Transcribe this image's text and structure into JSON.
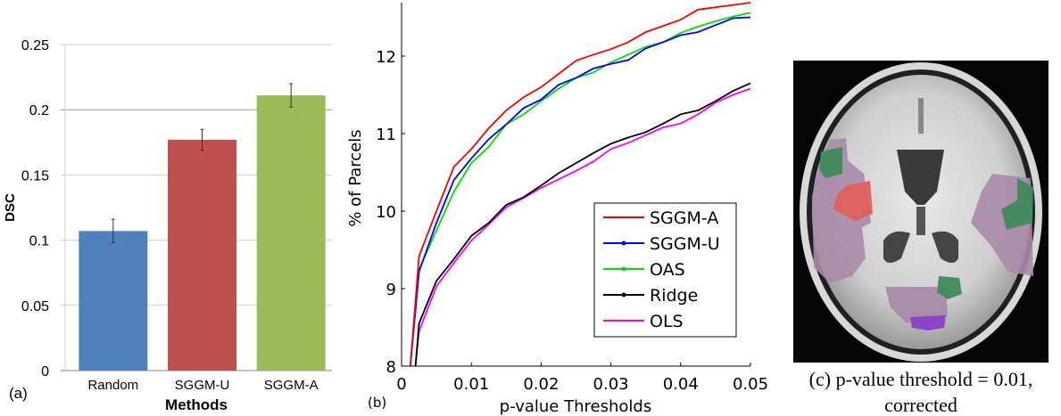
{
  "chart_data": [
    {
      "type": "bar",
      "panel_label": "(a)",
      "xlabel": "Methods",
      "ylabel": "DSC",
      "ylim": [
        0,
        0.25
      ],
      "yticks": [
        "0",
        "0.05",
        "0.1",
        "0.15",
        "0.2",
        "0.25"
      ],
      "grid": true,
      "categories": [
        "Random",
        "SGGM-U",
        "SGGM-A"
      ],
      "values": [
        0.107,
        0.177,
        0.211
      ],
      "errors": [
        0.009,
        0.008,
        0.009
      ],
      "colors": [
        "#4f81bd",
        "#c0504d",
        "#9bbb59"
      ]
    },
    {
      "type": "line",
      "panel_label": "(b)",
      "xlabel": "p-value Thresholds",
      "ylabel": "% of Parcels",
      "xlim": [
        0,
        0.05
      ],
      "ylim": [
        8,
        12.7
      ],
      "xticks": [
        "0",
        "0.01",
        "0.02",
        "0.03",
        "0.04",
        "0.05"
      ],
      "yticks": [
        "8",
        "9",
        "10",
        "11",
        "12"
      ],
      "grid": false,
      "legend_position": "bottom-right",
      "x": [
        0.00125,
        0.0025,
        0.005,
        0.0075,
        0.01,
        0.0125,
        0.015,
        0.0175,
        0.02,
        0.0225,
        0.025,
        0.0275,
        0.03,
        0.0325,
        0.035,
        0.0375,
        0.04,
        0.0425,
        0.045,
        0.0475,
        0.05
      ],
      "series": [
        {
          "name": "SGGM-A",
          "color": "#ff0000",
          "values": [
            8,
            9.42,
            10.0,
            10.57,
            10.8,
            11.07,
            11.3,
            11.47,
            11.6,
            11.77,
            11.94,
            12.02,
            12.09,
            12.18,
            12.31,
            12.39,
            12.47,
            12.6,
            12.63,
            12.66,
            12.72
          ]
        },
        {
          "name": "SGGM-U",
          "color": "#0000ff",
          "values": [
            8,
            9.22,
            9.85,
            10.4,
            10.68,
            10.93,
            11.12,
            11.33,
            11.44,
            11.63,
            11.72,
            11.84,
            11.9,
            11.95,
            12.1,
            12.18,
            12.27,
            12.31,
            12.4,
            12.49,
            12.5
          ]
        },
        {
          "name": "OAS",
          "color": "#00e000",
          "values": [
            8,
            9.25,
            9.75,
            10.25,
            10.62,
            10.83,
            11.12,
            11.25,
            11.42,
            11.58,
            11.72,
            11.79,
            11.92,
            12.02,
            12.12,
            12.18,
            12.3,
            12.38,
            12.45,
            12.51,
            12.56
          ]
        },
        {
          "name": "Ridge",
          "color": "#000000",
          "x_start": 0.002,
          "values": [
            8,
            8.55,
            9.1,
            9.38,
            9.68,
            9.85,
            10.08,
            10.18,
            10.33,
            10.49,
            10.62,
            10.75,
            10.87,
            10.95,
            11.02,
            11.13,
            11.25,
            11.3,
            11.42,
            11.55,
            11.65
          ]
        },
        {
          "name": "OLS",
          "color": "#ff00ff",
          "x_start": 0.002,
          "values": [
            8,
            8.45,
            9.03,
            9.33,
            9.62,
            9.83,
            10.05,
            10.17,
            10.3,
            10.41,
            10.52,
            10.64,
            10.8,
            10.88,
            10.98,
            11.08,
            11.13,
            11.25,
            11.4,
            11.5,
            11.58
          ]
        }
      ]
    }
  ],
  "brain_panel": {
    "caption_line1": "(c) p-value threshold = 0.01,",
    "caption_line2": "corrected",
    "overlay_colors": {
      "purple": "#a88aa8",
      "green": "#3f8a5c",
      "red": "#e0605a",
      "violet": "#8a3fc8"
    }
  }
}
